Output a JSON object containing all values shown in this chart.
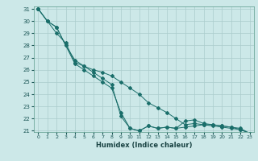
{
  "title": "",
  "xlabel": "Humidex (Indice chaleur)",
  "ylabel": "",
  "background_color": "#cce8e8",
  "grid_color": "#aacccc",
  "line_color": "#1a6e6a",
  "xmin": 0,
  "xmax": 23,
  "ymin": 21,
  "ymax": 31,
  "line1_x": [
    0,
    1,
    2,
    3,
    4,
    5,
    6,
    7,
    8,
    9,
    10,
    11,
    12,
    13,
    14,
    15,
    16,
    17,
    18,
    19,
    20,
    21,
    22,
    23
  ],
  "line1_y": [
    31.0,
    30.0,
    29.5,
    28.0,
    26.5,
    26.0,
    25.5,
    25.0,
    24.5,
    22.5,
    21.2,
    21.0,
    21.4,
    21.2,
    21.3,
    21.2,
    21.3,
    21.4,
    21.5,
    21.4,
    21.3,
    21.2,
    21.1,
    20.8
  ],
  "line2_x": [
    0,
    1,
    2,
    3,
    4,
    5,
    6,
    7,
    8,
    9,
    10,
    11,
    12,
    13,
    14,
    15,
    16,
    17,
    18,
    19,
    20,
    21,
    22,
    23
  ],
  "line2_y": [
    31.0,
    30.0,
    29.5,
    28.0,
    26.8,
    26.3,
    25.8,
    25.3,
    24.8,
    22.2,
    21.2,
    21.0,
    21.4,
    21.2,
    21.3,
    21.2,
    21.8,
    21.9,
    21.6,
    21.5,
    21.4,
    21.3,
    21.1,
    20.8
  ],
  "line3_x": [
    0,
    1,
    2,
    3,
    4,
    5,
    6,
    7,
    8,
    9,
    10,
    11,
    12,
    13,
    14,
    15,
    16,
    17,
    18,
    19,
    20,
    21,
    22,
    23
  ],
  "line3_y": [
    31.0,
    30.0,
    29.0,
    28.2,
    26.6,
    26.3,
    26.0,
    25.8,
    25.5,
    25.0,
    24.5,
    24.0,
    23.3,
    22.9,
    22.5,
    22.0,
    21.5,
    21.6,
    21.5,
    21.5,
    21.4,
    21.3,
    21.2,
    20.8
  ]
}
